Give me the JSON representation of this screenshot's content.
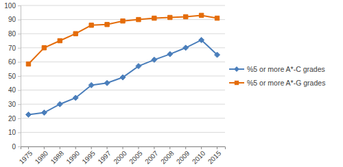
{
  "chart_data": {
    "type": "line",
    "categories": [
      "1975",
      "1980",
      "1988",
      "1990",
      "1995",
      "1997",
      "2000",
      "2005",
      "2007",
      "2008",
      "2009",
      "2010",
      "2015"
    ],
    "series": [
      {
        "name": "%5 or more A*-C grades",
        "color": "#4a7ebb",
        "marker": "diamond",
        "values": [
          22.6,
          24,
          30,
          34.5,
          43.5,
          45,
          49,
          57,
          61.5,
          65.5,
          70,
          75.5,
          65
        ]
      },
      {
        "name": "%5 or more A*-G grades",
        "color": "#e46c0a",
        "marker": "square",
        "values": [
          58.5,
          70,
          75,
          80,
          86,
          86.5,
          89,
          90,
          91,
          91.5,
          92,
          93,
          91
        ]
      }
    ],
    "ylim": [
      0,
      100
    ],
    "yticks": [
      0,
      10,
      20,
      30,
      40,
      50,
      60,
      70,
      80,
      90,
      100
    ],
    "grid": true,
    "legend": "right"
  }
}
